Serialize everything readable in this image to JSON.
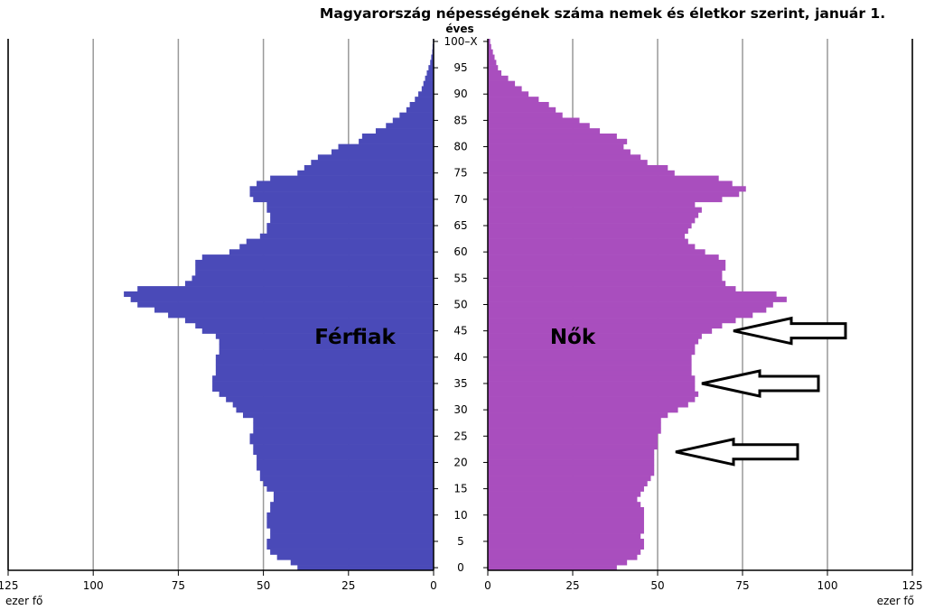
{
  "title": "Magyarország népességének száma nemek és életkor szerint, január 1.",
  "colors": {
    "male": "#4a4ab8",
    "female": "#a94ebe",
    "grid": "#999999",
    "axis": "#000000"
  },
  "chart_data": {
    "type": "bar",
    "orientation": "horizontal",
    "subtype": "population-pyramid",
    "title": "Magyarország népességének száma nemek és életkor szerint, január 1.",
    "y_axis_label": "éves",
    "x_axis_unit": "ezer fő",
    "xlim": [
      0,
      125
    ],
    "x_ticks": [
      125,
      100,
      75,
      50,
      25,
      0
    ],
    "y_ticks": [
      "0",
      "5",
      "10",
      "15",
      "20",
      "25",
      "30",
      "35",
      "40",
      "45",
      "50",
      "55",
      "60",
      "65",
      "70",
      "75",
      "80",
      "85",
      "90",
      "95",
      "100–X"
    ],
    "age_groups": [
      "0",
      "1",
      "2",
      "3",
      "4",
      "5",
      "6",
      "7",
      "8",
      "9",
      "10",
      "11",
      "12",
      "13",
      "14",
      "15",
      "16",
      "17",
      "18",
      "19",
      "20",
      "21",
      "22",
      "23",
      "24",
      "25",
      "26",
      "27",
      "28",
      "29",
      "30",
      "31",
      "32",
      "33",
      "34",
      "35",
      "36",
      "37",
      "38",
      "39",
      "40",
      "41",
      "42",
      "43",
      "44",
      "45",
      "46",
      "47",
      "48",
      "49",
      "50",
      "51",
      "52",
      "53",
      "54",
      "55",
      "56",
      "57",
      "58",
      "59",
      "60",
      "61",
      "62",
      "63",
      "64",
      "65",
      "66",
      "67",
      "68",
      "69",
      "70",
      "71",
      "72",
      "73",
      "74",
      "75",
      "76",
      "77",
      "78",
      "79",
      "80",
      "81",
      "82",
      "83",
      "84",
      "85",
      "86",
      "87",
      "88",
      "89",
      "90",
      "91",
      "92",
      "93",
      "94",
      "95",
      "96",
      "97",
      "98",
      "99",
      "100–X"
    ],
    "series": [
      {
        "name": "Férfiak",
        "values": [
          40,
          42,
          46,
          48,
          49,
          49,
          48,
          48,
          49,
          49,
          49,
          48,
          48,
          47,
          47,
          49,
          50,
          51,
          51,
          52,
          52,
          52,
          53,
          53,
          54,
          54,
          53,
          53,
          53,
          56,
          58,
          59,
          61,
          63,
          65,
          65,
          65,
          64,
          64,
          64,
          64,
          63,
          63,
          63,
          64,
          68,
          70,
          73,
          78,
          82,
          87,
          89,
          91,
          87,
          73,
          71,
          70,
          70,
          70,
          68,
          60,
          57,
          55,
          51,
          49,
          49,
          48,
          48,
          49,
          49,
          53,
          54,
          54,
          52,
          48,
          40,
          38,
          36,
          34,
          30,
          28,
          22,
          21,
          17,
          14,
          12,
          10,
          8,
          7,
          5.5,
          4.5,
          3.5,
          3,
          2.5,
          2,
          1.5,
          1,
          0.7,
          0.4,
          0.3,
          0.2
        ]
      },
      {
        "name": "Nők",
        "values": [
          38,
          41,
          44,
          45,
          46,
          46,
          45,
          46,
          46,
          46,
          46,
          46,
          45,
          44,
          45,
          46,
          47,
          48,
          49,
          49,
          49,
          49,
          49,
          50,
          50,
          50,
          51,
          51,
          51,
          53,
          56,
          59,
          61,
          62,
          61,
          61,
          61,
          60,
          60,
          60,
          60,
          61,
          61,
          62,
          63,
          66,
          69,
          73,
          78,
          82,
          84,
          88,
          85,
          73,
          70,
          69,
          69,
          70,
          70,
          68,
          64,
          61,
          59,
          58,
          59,
          60,
          61,
          62,
          63,
          61,
          69,
          74,
          76,
          72,
          68,
          55,
          53,
          47,
          45,
          42,
          40,
          41,
          38,
          33,
          30,
          27,
          22,
          20,
          18,
          15,
          12,
          10,
          8,
          6,
          4,
          3,
          2.5,
          2,
          1.5,
          1,
          0.7
        ]
      }
    ],
    "annotations": [
      {
        "type": "arrow",
        "points_to_age": 45,
        "side": "Nők"
      },
      {
        "type": "arrow",
        "points_to_age": 35,
        "side": "Nők"
      },
      {
        "type": "arrow",
        "points_to_age": 22,
        "side": "Nők"
      }
    ]
  },
  "labels": {
    "male": "Férfiak",
    "female": "Nők",
    "age_unit": "éves",
    "unit_left": "ezer fő",
    "unit_right": "ezer fő"
  }
}
